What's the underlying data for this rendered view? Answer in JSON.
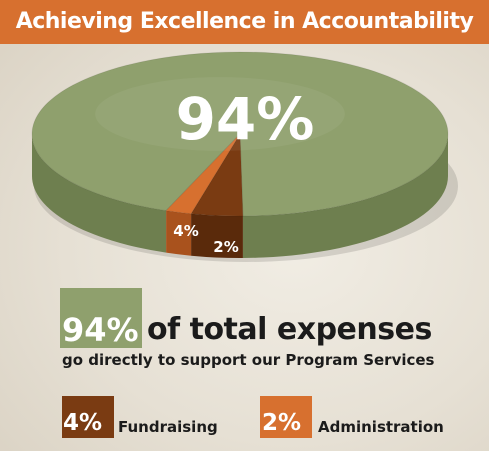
{
  "header": {
    "title": "Achieving Excellence in Accountability"
  },
  "colors": {
    "title_bar": "#d7702f",
    "program_services": "#8fa06d",
    "program_services_side": "#6e7f4f",
    "fundraising": "#7a3b12",
    "fundraising_side": "#5a2a0b",
    "administration": "#d7702f",
    "administration_side": "#a9521d"
  },
  "chart_data": {
    "type": "pie",
    "title": "Achieving Excellence in Accountability",
    "slices": [
      {
        "name": "Program Services",
        "value": 94,
        "label": "94%",
        "color": "#8fa06d"
      },
      {
        "name": "Fundraising",
        "value": 4,
        "label": "4%",
        "color": "#7a3b12"
      },
      {
        "name": "Administration",
        "value": 2,
        "label": "2%",
        "color": "#d7702f"
      }
    ]
  },
  "legend": {
    "main": {
      "pct": "94%",
      "text": "of total expenses",
      "sub": "go directly to support our Program Services"
    },
    "fundraising": {
      "pct": "4%",
      "label": "Fundraising"
    },
    "administration": {
      "pct": "2%",
      "label": "Administration"
    }
  }
}
